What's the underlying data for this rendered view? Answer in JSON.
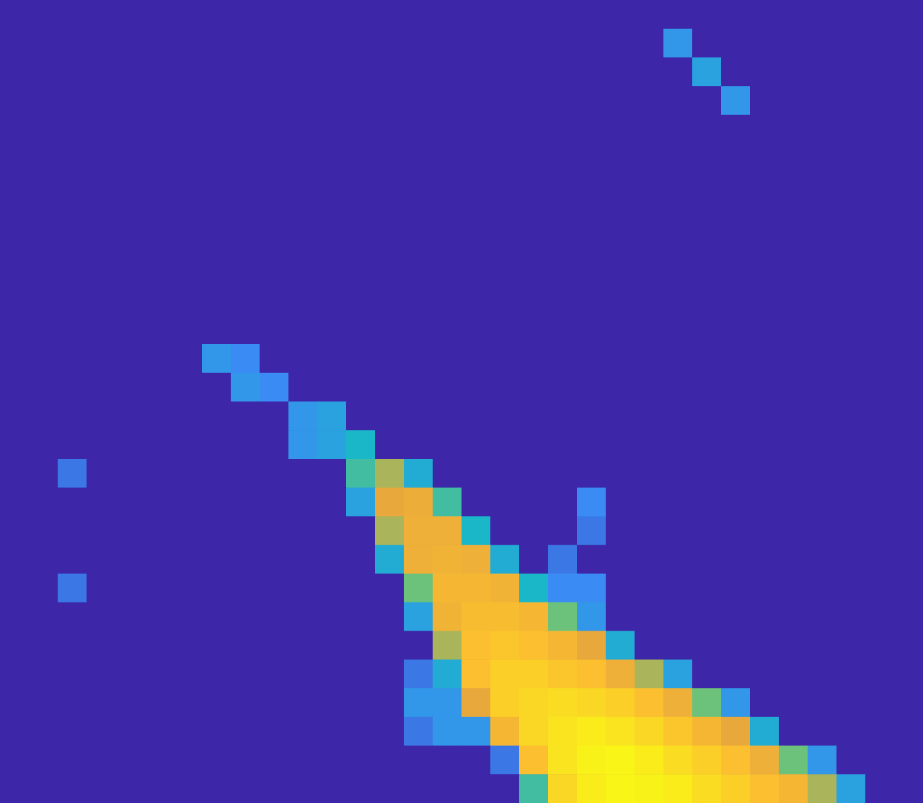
{
  "chart_data": {
    "type": "heatmap",
    "tick_labels": false,
    "zlim": [
      0,
      1
    ],
    "cells": [
      [
        0,
        0,
        0,
        0,
        0,
        0,
        0,
        0,
        0,
        0,
        0,
        0,
        0,
        0,
        0,
        0,
        0,
        0,
        0,
        0,
        0,
        0,
        0,
        0,
        0,
        0,
        0,
        0,
        0,
        0,
        0,
        0
      ],
      [
        0,
        0,
        0,
        0,
        0,
        0,
        0,
        0,
        0,
        0,
        0,
        0,
        0,
        0,
        0,
        0,
        0,
        0,
        0,
        0,
        0,
        0,
        0,
        0.3,
        0,
        0,
        0,
        0,
        0,
        0,
        0,
        0
      ],
      [
        0,
        0,
        0,
        0,
        0,
        0,
        0,
        0,
        0,
        0,
        0,
        0,
        0,
        0,
        0,
        0,
        0,
        0,
        0,
        0,
        0,
        0,
        0,
        0,
        0.35,
        0,
        0,
        0,
        0,
        0,
        0,
        0
      ],
      [
        0,
        0,
        0,
        0,
        0,
        0,
        0,
        0,
        0,
        0,
        0,
        0,
        0,
        0,
        0,
        0,
        0,
        0,
        0,
        0,
        0,
        0,
        0,
        0,
        0,
        0.3,
        0,
        0,
        0,
        0,
        0,
        0
      ],
      [
        0,
        0,
        0,
        0,
        0,
        0,
        0,
        0,
        0,
        0,
        0,
        0,
        0,
        0,
        0,
        0,
        0,
        0,
        0,
        0,
        0,
        0,
        0,
        0,
        0,
        0,
        0,
        0,
        0,
        0,
        0,
        0
      ],
      [
        0,
        0,
        0,
        0,
        0,
        0,
        0,
        0,
        0,
        0,
        0,
        0,
        0,
        0,
        0,
        0,
        0,
        0,
        0,
        0,
        0,
        0,
        0,
        0,
        0,
        0,
        0,
        0,
        0,
        0,
        0,
        0
      ],
      [
        0,
        0,
        0,
        0,
        0,
        0,
        0,
        0,
        0,
        0,
        0,
        0,
        0,
        0,
        0,
        0,
        0,
        0,
        0,
        0,
        0,
        0,
        0,
        0,
        0,
        0,
        0,
        0,
        0,
        0,
        0,
        0
      ],
      [
        0,
        0,
        0,
        0,
        0,
        0,
        0,
        0,
        0,
        0,
        0,
        0,
        0,
        0,
        0,
        0,
        0,
        0,
        0,
        0,
        0,
        0,
        0,
        0,
        0,
        0,
        0,
        0,
        0,
        0,
        0,
        0
      ],
      [
        0,
        0,
        0,
        0,
        0,
        0,
        0,
        0,
        0,
        0,
        0,
        0,
        0,
        0,
        0,
        0,
        0,
        0,
        0,
        0,
        0,
        0,
        0,
        0,
        0,
        0,
        0,
        0,
        0,
        0,
        0,
        0
      ],
      [
        0,
        0,
        0,
        0,
        0,
        0,
        0,
        0,
        0,
        0,
        0,
        0,
        0,
        0,
        0,
        0,
        0,
        0,
        0,
        0,
        0,
        0,
        0,
        0,
        0,
        0,
        0,
        0,
        0,
        0,
        0,
        0
      ],
      [
        0,
        0,
        0,
        0,
        0,
        0,
        0,
        0,
        0,
        0,
        0,
        0,
        0,
        0,
        0,
        0,
        0,
        0,
        0,
        0,
        0,
        0,
        0,
        0,
        0,
        0,
        0,
        0,
        0,
        0,
        0,
        0
      ],
      [
        0,
        0,
        0,
        0,
        0,
        0,
        0,
        0,
        0,
        0,
        0,
        0,
        0,
        0,
        0,
        0,
        0,
        0,
        0,
        0,
        0,
        0,
        0,
        0,
        0,
        0,
        0,
        0,
        0,
        0,
        0,
        0
      ],
      [
        0,
        0,
        0,
        0,
        0,
        0,
        0,
        0.3,
        0.25,
        0,
        0,
        0,
        0,
        0,
        0,
        0,
        0,
        0,
        0,
        0,
        0,
        0,
        0,
        0,
        0,
        0,
        0,
        0,
        0,
        0,
        0,
        0
      ],
      [
        0,
        0,
        0,
        0,
        0,
        0,
        0,
        0,
        0.3,
        0.25,
        0,
        0,
        0,
        0,
        0,
        0,
        0,
        0,
        0,
        0,
        0,
        0,
        0,
        0,
        0,
        0,
        0,
        0,
        0,
        0,
        0,
        0
      ],
      [
        0,
        0,
        0,
        0,
        0,
        0,
        0,
        0,
        0,
        0,
        0.3,
        0.35,
        0,
        0,
        0,
        0,
        0,
        0,
        0,
        0,
        0,
        0,
        0,
        0,
        0,
        0,
        0,
        0,
        0,
        0,
        0,
        0
      ],
      [
        0,
        0,
        0,
        0,
        0,
        0,
        0,
        0,
        0,
        0,
        0.3,
        0.35,
        0.45,
        0,
        0,
        0,
        0,
        0,
        0,
        0,
        0,
        0,
        0,
        0,
        0,
        0,
        0,
        0,
        0,
        0,
        0,
        0
      ],
      [
        0,
        0,
        0.2,
        0,
        0,
        0,
        0,
        0,
        0,
        0,
        0,
        0,
        0.5,
        0.6,
        0.4,
        0,
        0,
        0,
        0,
        0,
        0,
        0,
        0,
        0,
        0,
        0,
        0,
        0,
        0,
        0,
        0,
        0
      ],
      [
        0,
        0,
        0,
        0,
        0,
        0,
        0,
        0,
        0,
        0,
        0,
        0,
        0.35,
        0.65,
        0.68,
        0.5,
        0,
        0,
        0,
        0,
        0.25,
        0,
        0,
        0,
        0,
        0,
        0,
        0,
        0,
        0,
        0,
        0
      ],
      [
        0,
        0,
        0,
        0,
        0,
        0,
        0,
        0,
        0,
        0,
        0,
        0,
        0,
        0.6,
        0.7,
        0.7,
        0.45,
        0,
        0,
        0,
        0.2,
        0,
        0,
        0,
        0,
        0,
        0,
        0,
        0,
        0,
        0,
        0
      ],
      [
        0,
        0,
        0,
        0,
        0,
        0,
        0,
        0,
        0,
        0,
        0,
        0,
        0,
        0.4,
        0.7,
        0.72,
        0.7,
        0.4,
        0,
        0.2,
        0,
        0,
        0,
        0,
        0,
        0,
        0,
        0,
        0,
        0,
        0,
        0
      ],
      [
        0,
        0,
        0.2,
        0,
        0,
        0,
        0,
        0,
        0,
        0,
        0,
        0,
        0,
        0,
        0.55,
        0.75,
        0.75,
        0.72,
        0.45,
        0.25,
        0.25,
        0,
        0,
        0,
        0,
        0,
        0,
        0,
        0,
        0,
        0,
        0
      ],
      [
        0,
        0,
        0,
        0,
        0,
        0,
        0,
        0,
        0,
        0,
        0,
        0,
        0,
        0,
        0.35,
        0.72,
        0.78,
        0.78,
        0.75,
        0.55,
        0.3,
        0,
        0,
        0,
        0,
        0,
        0,
        0,
        0,
        0,
        0,
        0
      ],
      [
        0,
        0,
        0,
        0,
        0,
        0,
        0,
        0,
        0,
        0,
        0,
        0,
        0,
        0,
        0,
        0.6,
        0.8,
        0.82,
        0.8,
        0.75,
        0.65,
        0.4,
        0,
        0,
        0,
        0,
        0,
        0,
        0,
        0,
        0,
        0
      ],
      [
        0,
        0,
        0,
        0,
        0,
        0,
        0,
        0,
        0,
        0,
        0,
        0,
        0,
        0,
        0.2,
        0.4,
        0.8,
        0.85,
        0.85,
        0.82,
        0.8,
        0.7,
        0.6,
        0.35,
        0,
        0,
        0,
        0,
        0,
        0,
        0,
        0
      ],
      [
        0,
        0,
        0,
        0,
        0,
        0,
        0,
        0,
        0,
        0,
        0,
        0,
        0,
        0,
        0.3,
        0.3,
        0.65,
        0.85,
        0.88,
        0.9,
        0.88,
        0.85,
        0.8,
        0.7,
        0.55,
        0.3,
        0,
        0,
        0,
        0,
        0,
        0
      ],
      [
        0,
        0,
        0,
        0,
        0,
        0,
        0,
        0,
        0,
        0,
        0,
        0,
        0,
        0,
        0.2,
        0.3,
        0.3,
        0.75,
        0.88,
        0.92,
        0.95,
        0.92,
        0.88,
        0.82,
        0.75,
        0.65,
        0.4,
        0,
        0,
        0,
        0,
        0
      ],
      [
        0,
        0,
        0,
        0,
        0,
        0,
        0,
        0,
        0,
        0,
        0,
        0,
        0,
        0,
        0,
        0,
        0,
        0.2,
        0.8,
        0.92,
        0.97,
        0.98,
        0.95,
        0.9,
        0.85,
        0.8,
        0.7,
        0.55,
        0.3,
        0,
        0,
        0
      ],
      [
        0,
        0,
        0,
        0,
        0,
        0,
        0,
        0,
        0,
        0,
        0,
        0,
        0,
        0,
        0,
        0,
        0,
        0,
        0.5,
        0.88,
        0.95,
        0.98,
        0.97,
        0.95,
        0.9,
        0.85,
        0.8,
        0.75,
        0.6,
        0.35,
        0,
        0
      ]
    ]
  }
}
